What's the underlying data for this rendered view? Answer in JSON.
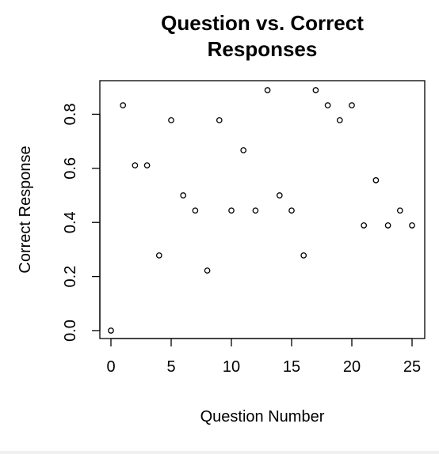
{
  "chart_data": {
    "type": "scatter",
    "title_lines": [
      "Question vs. Correct",
      "Responses"
    ],
    "xlabel": "Question Number",
    "ylabel": "Correct Response",
    "xlim": [
      0,
      25
    ],
    "ylim": [
      0,
      0.889
    ],
    "xticks": [
      0,
      5,
      10,
      15,
      20,
      25
    ],
    "xtick_labels": [
      "0",
      "5",
      "10",
      "15",
      "20",
      "25"
    ],
    "yticks": [
      0,
      0.2,
      0.4,
      0.6,
      0.8
    ],
    "ytick_labels": [
      "0.0",
      "0.2",
      "0.4",
      "0.6",
      "0.8"
    ],
    "grid": false,
    "x": [
      0,
      1,
      2,
      3,
      4,
      5,
      6,
      7,
      8,
      9,
      10,
      11,
      12,
      13,
      14,
      15,
      16,
      17,
      18,
      19,
      20,
      21,
      22,
      23,
      24,
      25
    ],
    "y": [
      0.0,
      0.833,
      0.611,
      0.611,
      0.278,
      0.778,
      0.5,
      0.444,
      0.222,
      0.778,
      0.444,
      0.667,
      0.444,
      0.889,
      0.5,
      0.444,
      0.278,
      0.889,
      0.833,
      0.778,
      0.833,
      0.389,
      0.556,
      0.389,
      0.444,
      0.389
    ]
  }
}
